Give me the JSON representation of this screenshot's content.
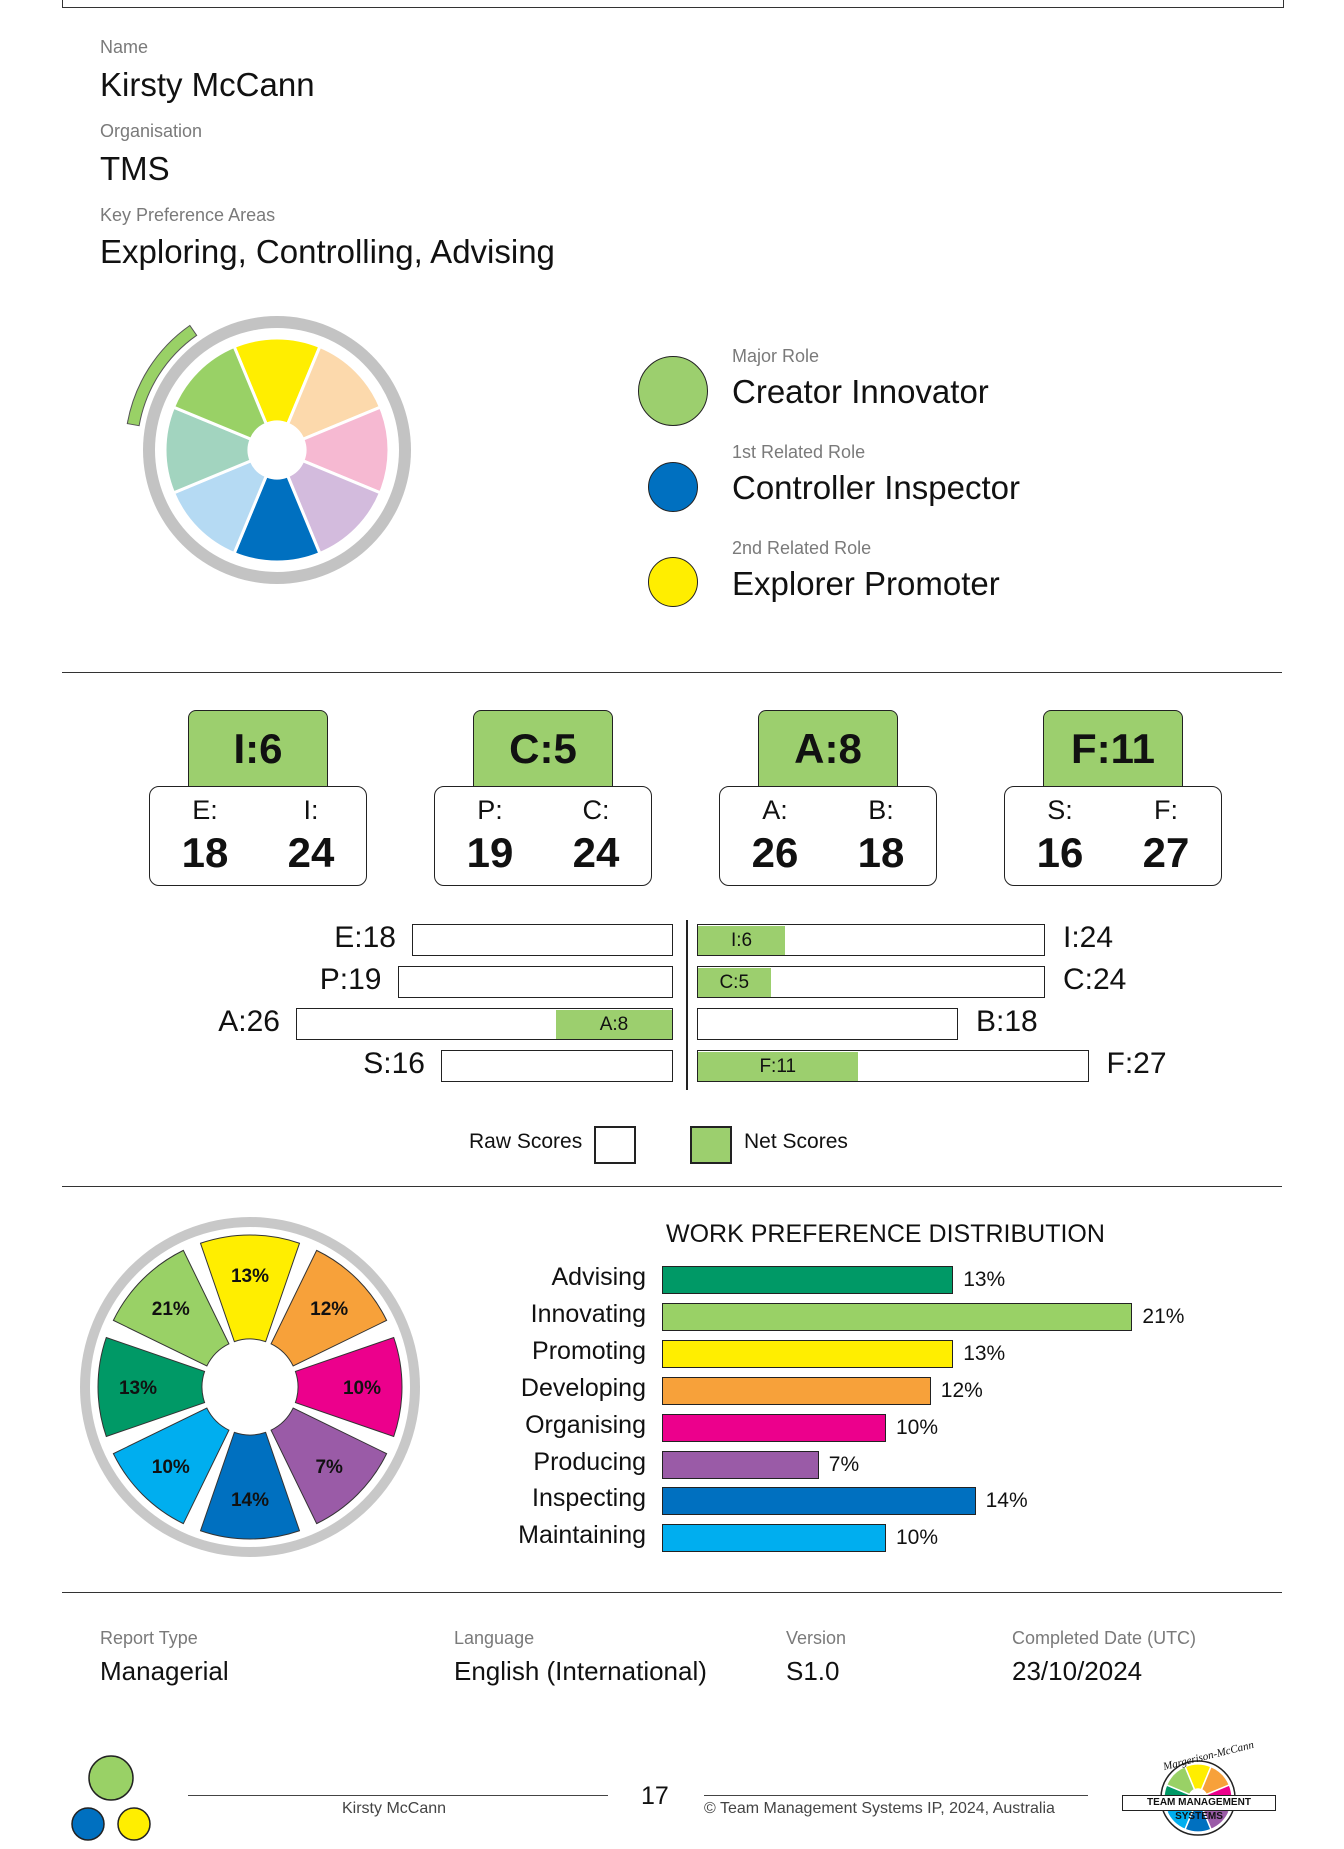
{
  "profile": {
    "name_label": "Name",
    "name": "Kirsty McCann",
    "org_label": "Organisation",
    "org": "TMS",
    "kpa_label": "Key Preference Areas",
    "kpa": "Exploring, Controlling, Advising"
  },
  "roles": [
    {
      "label": "Major Role",
      "name": "Creator Innovator",
      "color": "#9ccf6e"
    },
    {
      "label": "1st Related Role",
      "name": "Controller Inspector",
      "color": "#0070c0"
    },
    {
      "label": "2nd Related Role",
      "name": "Explorer Promoter",
      "color": "#ffee00"
    }
  ],
  "net_tabs": [
    {
      "tab": "I:6",
      "left_key": "E:",
      "left_val": "18",
      "right_key": "I:",
      "right_val": "24"
    },
    {
      "tab": "C:5",
      "left_key": "P:",
      "left_val": "19",
      "right_key": "C:",
      "right_val": "24"
    },
    {
      "tab": "A:8",
      "left_key": "A:",
      "left_val": "26",
      "right_key": "B:",
      "right_val": "18"
    },
    {
      "tab": "F:11",
      "left_key": "S:",
      "left_val": "16",
      "right_key": "F:",
      "right_val": "27"
    }
  ],
  "score_bars": {
    "rows": [
      {
        "left_label": "E:18",
        "left_raw": 18,
        "right_label": "I:24",
        "right_raw": 24,
        "net_label": "I:6",
        "net": 6,
        "net_side": "right"
      },
      {
        "left_label": "P:19",
        "left_raw": 19,
        "right_label": "C:24",
        "right_raw": 24,
        "net_label": "C:5",
        "net": 5,
        "net_side": "right"
      },
      {
        "left_label": "A:26",
        "left_raw": 26,
        "right_label": "B:18",
        "right_raw": 18,
        "net_label": "A:8",
        "net": 8,
        "net_side": "left"
      },
      {
        "left_label": "S:16",
        "left_raw": 16,
        "right_label": "F:27",
        "right_raw": 27,
        "net_label": "F:11",
        "net": 11,
        "net_side": "right"
      }
    ],
    "legend_raw": "Raw Scores",
    "legend_net": "Net Scores"
  },
  "chart_data": {
    "type": "bar",
    "title": "WORK PREFERENCE DISTRIBUTION",
    "categories": [
      "Advising",
      "Innovating",
      "Promoting",
      "Developing",
      "Organising",
      "Producing",
      "Inspecting",
      "Maintaining"
    ],
    "values": [
      13,
      21,
      13,
      12,
      10,
      7,
      14,
      10
    ],
    "value_labels": [
      "13%",
      "21%",
      "13%",
      "12%",
      "10%",
      "7%",
      "14%",
      "10%"
    ],
    "colors": [
      "#009966",
      "#99d166",
      "#ffee00",
      "#f7a13a",
      "#ec008c",
      "#9a5ba7",
      "#0070c0",
      "#00aeef"
    ],
    "wheel_order": [
      {
        "label": "13%",
        "color": "#ffee00"
      },
      {
        "label": "12%",
        "color": "#f7a13a"
      },
      {
        "label": "10%",
        "color": "#ec008c"
      },
      {
        "label": "7%",
        "color": "#9a5ba7"
      },
      {
        "label": "14%",
        "color": "#0070c0"
      },
      {
        "label": "10%",
        "color": "#00aeef"
      },
      {
        "label": "13%",
        "color": "#009966"
      },
      {
        "label": "21%",
        "color": "#99d166"
      }
    ]
  },
  "report": {
    "type_label": "Report Type",
    "type": "Managerial",
    "lang_label": "Language",
    "lang": "English (International)",
    "ver_label": "Version",
    "ver": "S1.0",
    "date_label": "Completed Date (UTC)",
    "date": "23/10/2024"
  },
  "footer": {
    "name": "Kirsty McCann",
    "page": "17",
    "copyright": "© Team Management Systems IP, 2024, Australia",
    "logo_top": "Margerison-McCann",
    "logo_bottom": "TEAM MANAGEMENT SYSTEMS"
  }
}
